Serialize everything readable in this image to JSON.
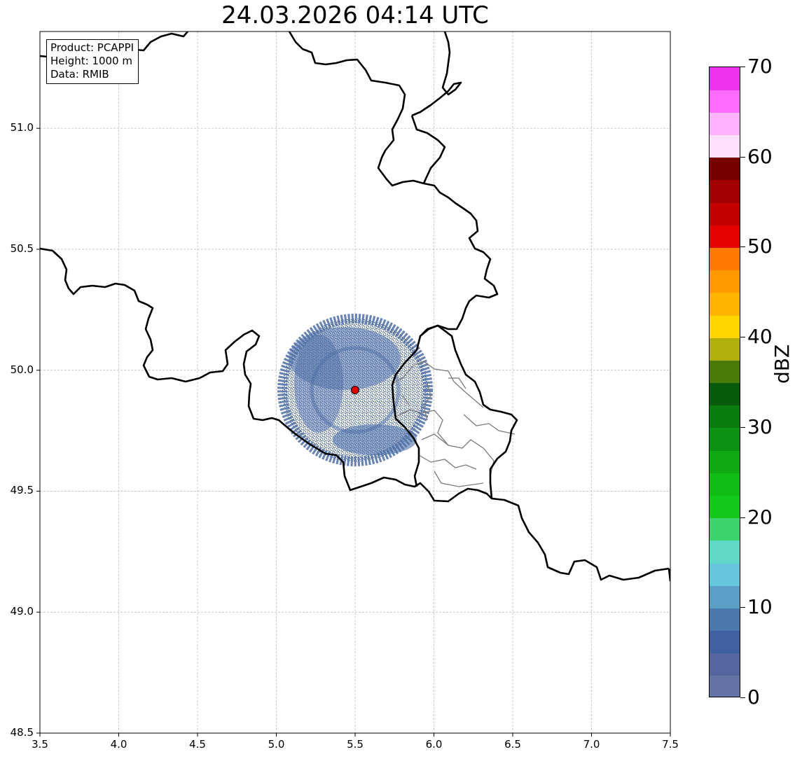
{
  "title": "24.03.2026 04:14 UTC",
  "info_box": {
    "product": "Product: PCAPPI",
    "height": "Height: 1000 m",
    "data": "Data: RMIB"
  },
  "map": {
    "lon_range": [
      3.5,
      7.5
    ],
    "lat_range": [
      48.5,
      51.4
    ],
    "grid": true,
    "x_ticks": [
      "3.5",
      "4.0",
      "4.5",
      "5.0",
      "5.5",
      "6.0",
      "6.5",
      "7.0",
      "7.5"
    ],
    "y_ticks": [
      "48.5",
      "49.0",
      "49.5",
      "50.0",
      "50.5",
      "51.0"
    ],
    "radar_site": {
      "lon": 5.505,
      "lat": 49.914,
      "marker_color": "#e00000"
    },
    "echo_area": {
      "center_lon": 5.505,
      "center_lat": 49.914,
      "radius_lon": 0.46,
      "radius_lat": 0.3,
      "dominant_color": "#4f6fa6"
    },
    "border_color": "#000000",
    "province_color": "#7a7a7a"
  },
  "colorbar": {
    "label": "dBZ",
    "min": 0,
    "max": 70,
    "step": 2.5,
    "tick_labels": [
      "0",
      "10",
      "20",
      "30",
      "40",
      "50",
      "60",
      "70"
    ],
    "colors": [
      "#6473a6",
      "#55659f",
      "#4160a2",
      "#4b78ad",
      "#5b9ec6",
      "#66c4dd",
      "#5fd8c7",
      "#3dd46b",
      "#12c81b",
      "#10bd14",
      "#0fa812",
      "#0c9210",
      "#0a7b0d",
      "#075c0b",
      "#497a0a",
      "#b1b00a",
      "#fdd600",
      "#ffb400",
      "#ff9900",
      "#ff7a00",
      "#e50000",
      "#c30000",
      "#a20000",
      "#770000",
      "#ffe0ff",
      "#ffb2ff",
      "#ff6bff",
      "#ee33ee"
    ]
  }
}
